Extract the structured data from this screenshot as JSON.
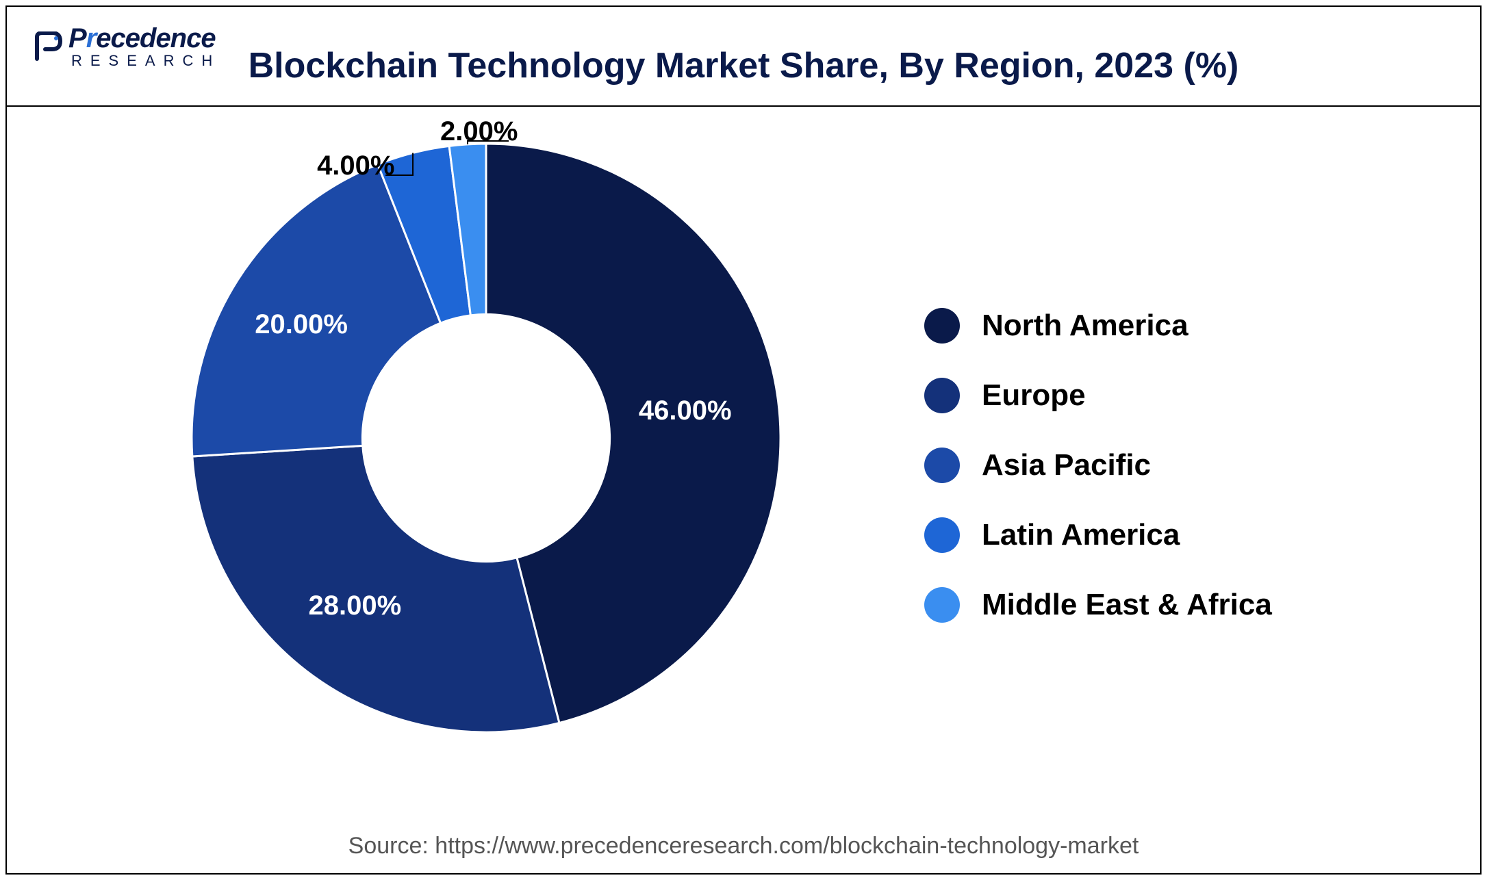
{
  "logo": {
    "brand_prefix": "P",
    "brand_mid": "r",
    "brand_rest": "ecedence",
    "subline": "RESEARCH"
  },
  "title": "Blockchain Technology Market Share, By Region, 2023 (%)",
  "chart": {
    "type": "donut",
    "inner_radius_ratio": 0.42,
    "background_color": "#ffffff",
    "slices": [
      {
        "label": "North America",
        "value": 46.0,
        "display": "46.00%",
        "color": "#0a1a4a",
        "label_color": "#ffffff"
      },
      {
        "label": "Europe",
        "value": 28.0,
        "display": "28.00%",
        "color": "#14317a",
        "label_color": "#ffffff"
      },
      {
        "label": "Asia Pacific",
        "value": 20.0,
        "display": "20.00%",
        "color": "#1c4aa8",
        "label_color": "#ffffff"
      },
      {
        "label": "Latin America",
        "value": 4.0,
        "display": "4.00%",
        "color": "#1e66d6",
        "label_color": "#000000"
      },
      {
        "label": "Middle East & Africa",
        "value": 2.0,
        "display": "2.00%",
        "color": "#3a8ef0",
        "label_color": "#000000"
      }
    ],
    "label_fontsize": 40,
    "label_fontweight": 700,
    "start_angle_deg": -90
  },
  "legend": {
    "swatch_size": 52,
    "label_fontsize": 44,
    "label_fontweight": 700,
    "gap": 50
  },
  "source": "Source: https://www.precedenceresearch.com/blockchain-technology-market"
}
